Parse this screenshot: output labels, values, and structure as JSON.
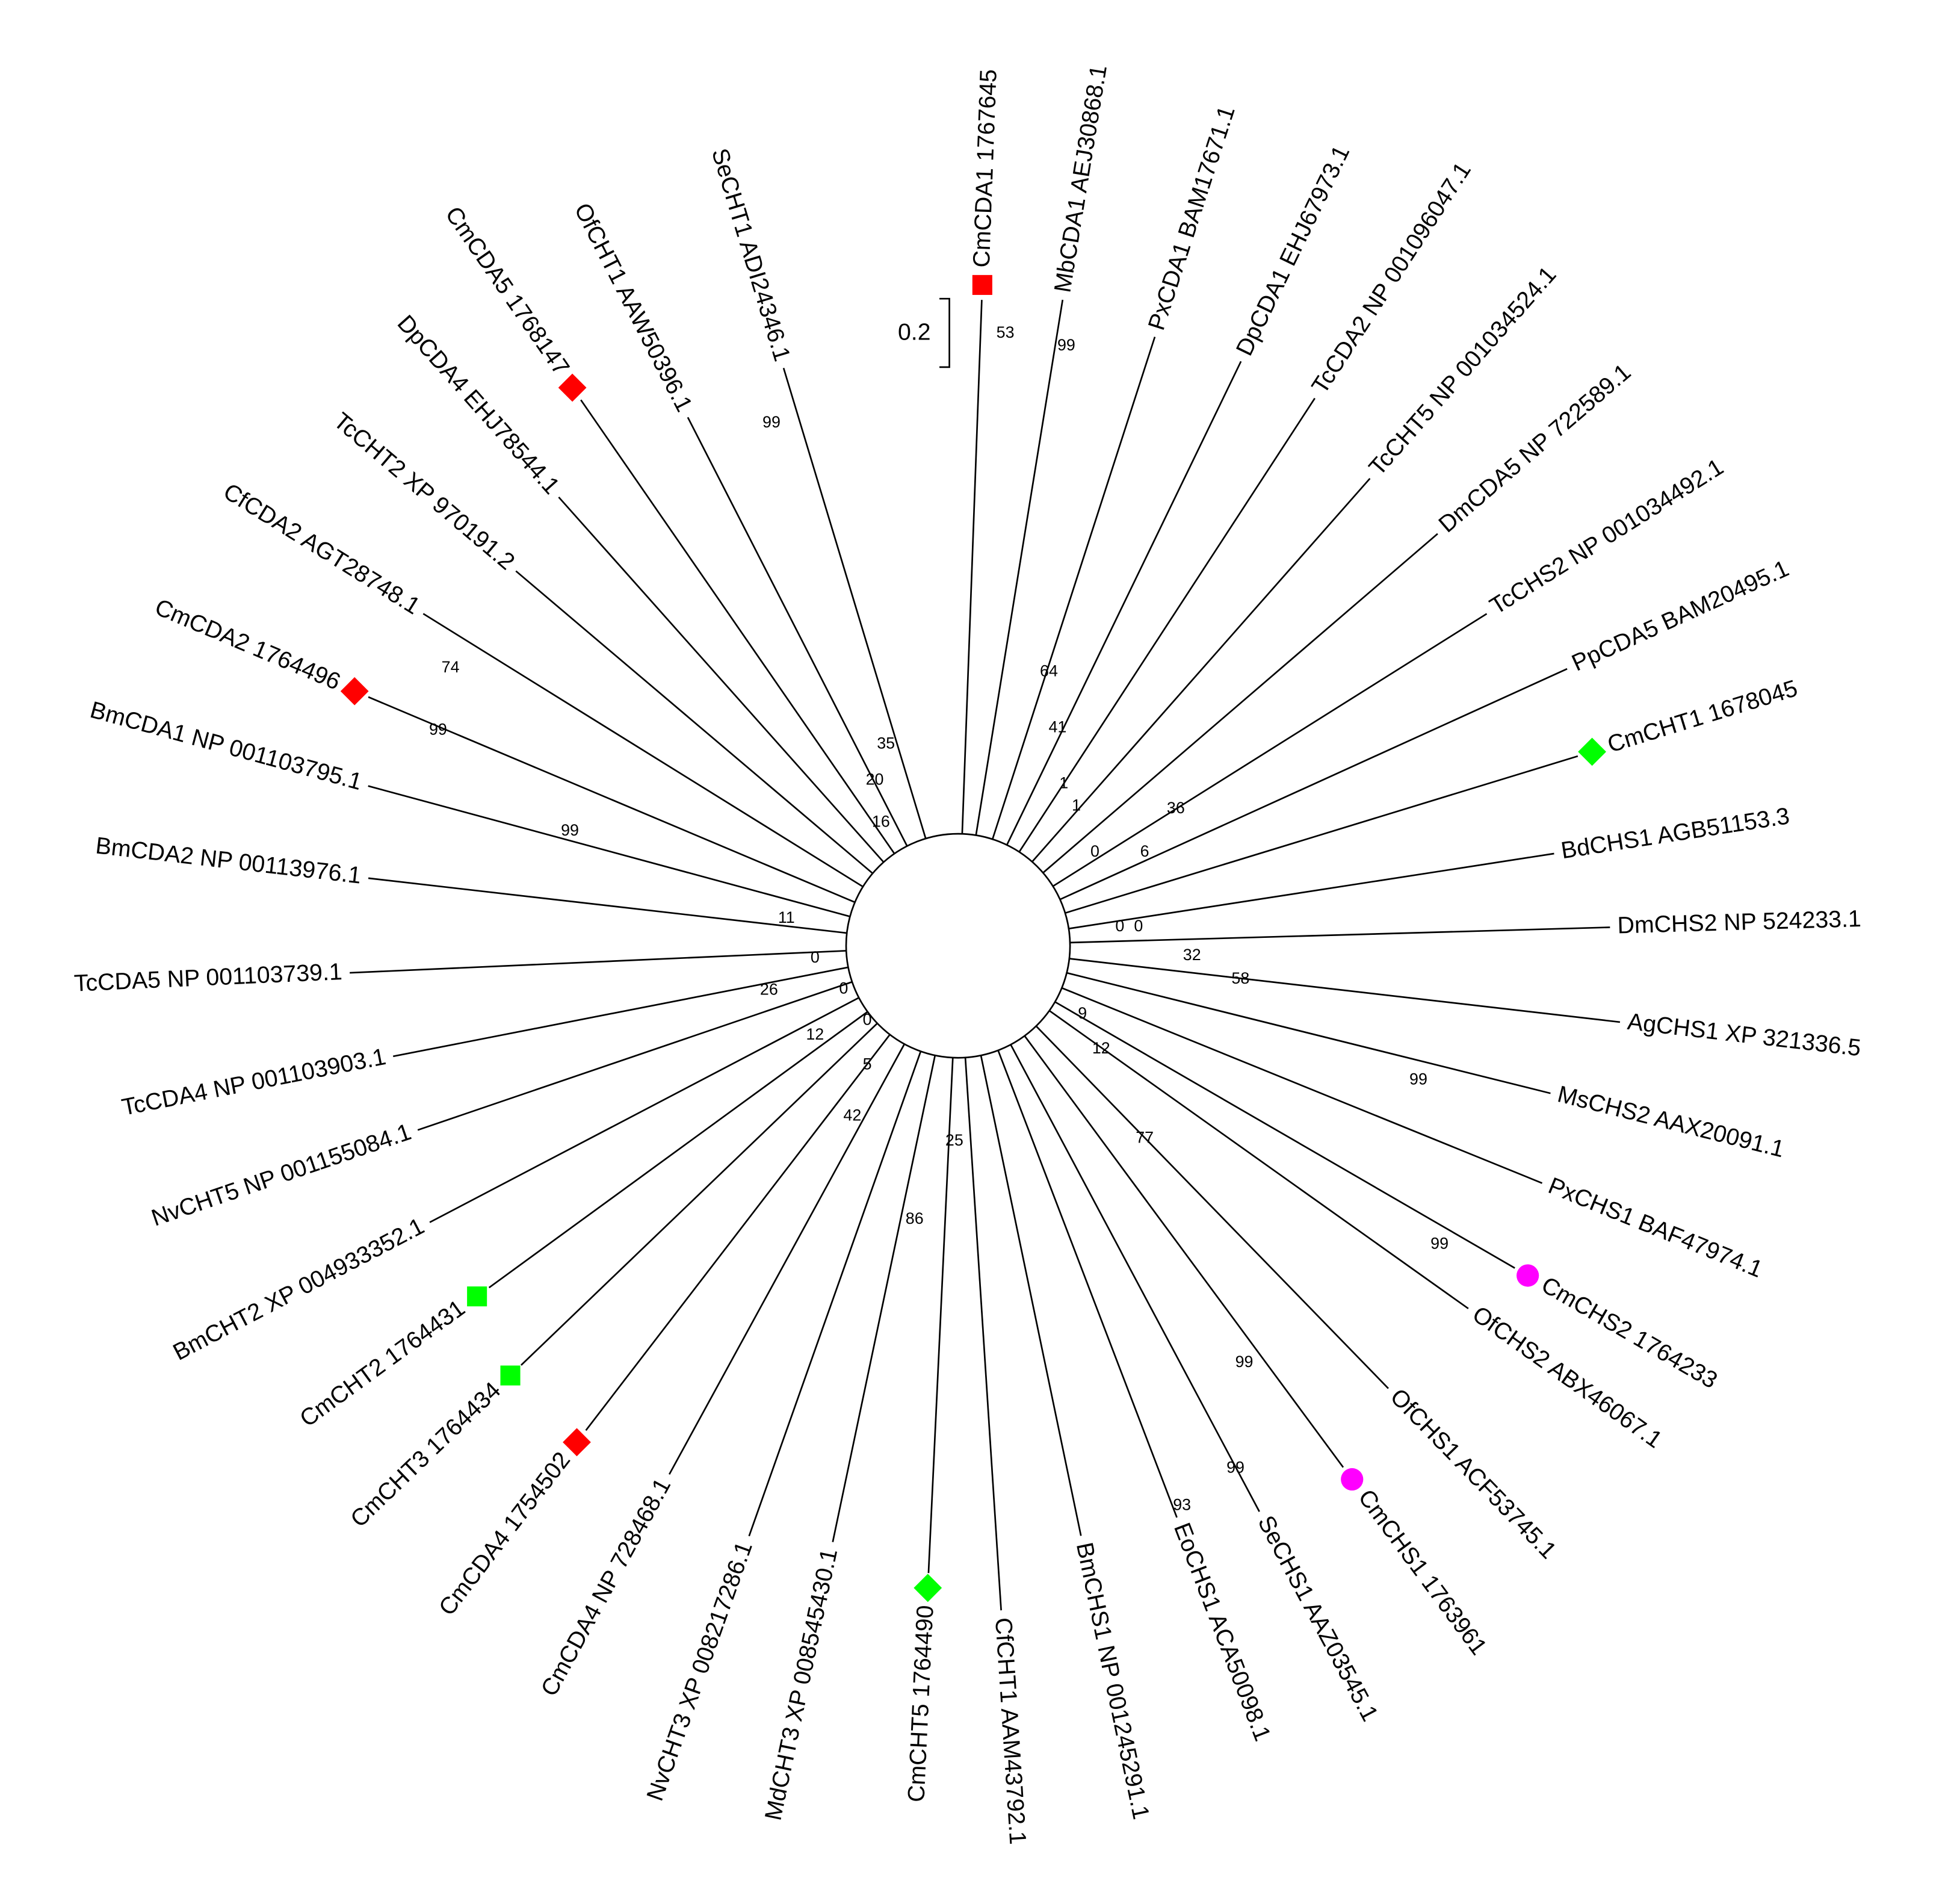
{
  "scale_bar": "0.2",
  "leaves": [
    "CmCDA1 1767645",
    "MbCDA1 AEJ30868.1",
    "PxCDA1 BAM17671.1",
    "DpCDA1 EHJ67973.1",
    "TcCDA2 NP 001096047.1",
    "TcCHT5 NP 001034524.1",
    "DmCDA5 NP 722589.1",
    "TcCHS2 NP 001034492.1",
    "PpCDA5 BAM20495.1",
    "CmCHT1 1678045",
    "BdCHS1 AGB51153.3",
    "DmCHS2 NP 524233.1",
    "AgCHS1 XP 321336.5",
    "MsCHS2 AAX20091.1",
    "PxCHS1 BAF47974.1",
    "CmCHS2 1764233",
    "OfCHS2 ABX46067.1",
    "OfCHS1 ACF53745.1",
    "CmCHS1 1763961",
    "SeCHS1 AAZ03545.1",
    "EoCHS1 ACA50098.1",
    "BmCHS1 NP 001245291.1",
    "CfCHT1 AAM43792.1",
    "CmCHT5 1764490",
    "MdCHT3 XP 008545430.1",
    "NvCHT3 XP 008217286.1",
    "CmCDA4 NP 728468.1",
    "CmCDA4 1754502",
    "CmCHT3 1764434",
    "CmCHT2 1764431",
    "BmCHT2 XP 004933352.1",
    "NvCHT5 NP 001155084.1",
    "TcCDA4 NP 001103903.1",
    "TcCDA5 NP 001103739.1",
    "BmCDA2 NP 00113976.1",
    "BmCDA1 NP 001103795.1",
    "CmCDA2 1764496",
    "CfCDA2 AGT28748.1",
    "TcCHT2 XP 970191.2",
    "DpCDA4 EHJ78544.1",
    "CmCDA5 1768147",
    "OfCHT1 AAW50396.1",
    "SeCHT1 ADI24346.1"
  ],
  "bootstrap": [
    53,
    99,
    99,
    64,
    41,
    1,
    1,
    36,
    0,
    6,
    0,
    0,
    32,
    58,
    9,
    12,
    99,
    77,
    99,
    99,
    99,
    93,
    74,
    99,
    99,
    11,
    0,
    26,
    12,
    0,
    0,
    5,
    42,
    86,
    25,
    35,
    20,
    16
  ]
}
